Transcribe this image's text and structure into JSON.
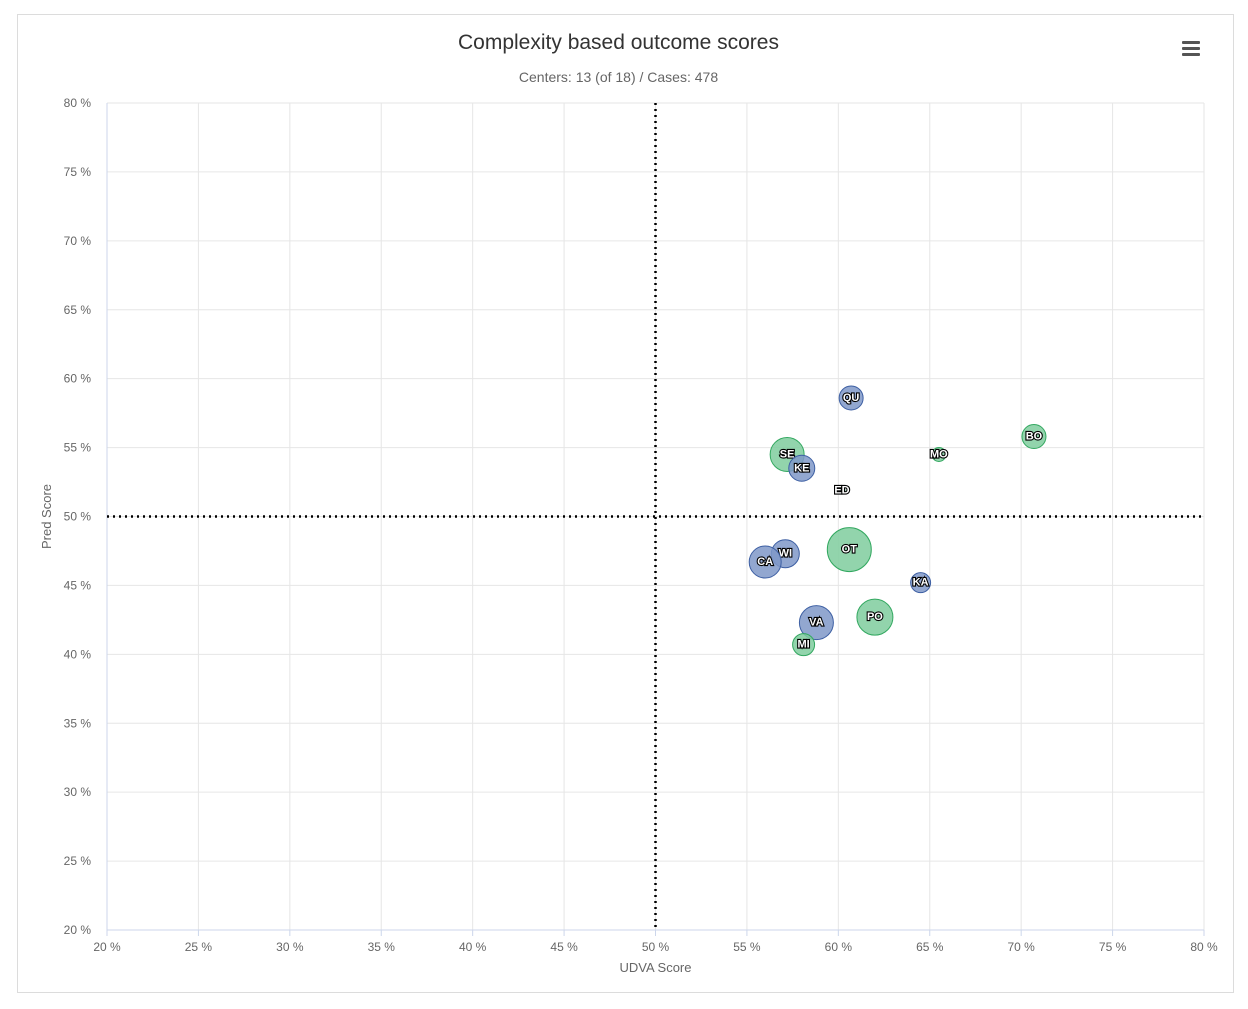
{
  "chart_data": {
    "type": "bubble",
    "title": "Complexity based outcome scores",
    "subtitle": "Centers: 13 (of 18) / Cases: 478",
    "xlabel": "UDVA Score",
    "ylabel": "Pred Score",
    "xlim": [
      20,
      80
    ],
    "ylim": [
      20,
      80
    ],
    "x_ticks": [
      "20 %",
      "25 %",
      "30 %",
      "35 %",
      "40 %",
      "45 %",
      "50 %",
      "55 %",
      "60 %",
      "65 %",
      "70 %",
      "75 %",
      "80 %"
    ],
    "y_ticks": [
      "20 %",
      "25 %",
      "30 %",
      "35 %",
      "40 %",
      "45 %",
      "50 %",
      "55 %",
      "60 %",
      "65 %",
      "70 %",
      "75 %",
      "80 %"
    ],
    "reference_lines": {
      "x": 50,
      "y": 50
    },
    "grid": true,
    "colors": {
      "blue": "#7f98c8",
      "green": "#7fcc9d"
    },
    "points": [
      {
        "label": "QU",
        "x": 60.7,
        "y": 58.6,
        "size": 12,
        "color": "blue"
      },
      {
        "label": "BO",
        "x": 70.7,
        "y": 55.8,
        "size": 12,
        "color": "green"
      },
      {
        "label": "SE",
        "x": 57.2,
        "y": 54.5,
        "size": 17,
        "color": "green"
      },
      {
        "label": "MO",
        "x": 65.5,
        "y": 54.5,
        "size": 7,
        "color": "green"
      },
      {
        "label": "KE",
        "x": 58.0,
        "y": 53.5,
        "size": 13,
        "color": "blue"
      },
      {
        "label": "ED",
        "x": 60.2,
        "y": 51.9,
        "size": 3,
        "color": "green"
      },
      {
        "label": "OT",
        "x": 60.6,
        "y": 47.6,
        "size": 22,
        "color": "green"
      },
      {
        "label": "WI",
        "x": 57.1,
        "y": 47.3,
        "size": 14,
        "color": "blue"
      },
      {
        "label": "CA",
        "x": 56.0,
        "y": 46.7,
        "size": 16,
        "color": "blue"
      },
      {
        "label": "KA",
        "x": 64.5,
        "y": 45.2,
        "size": 10,
        "color": "blue"
      },
      {
        "label": "PO",
        "x": 62.0,
        "y": 42.7,
        "size": 18,
        "color": "green"
      },
      {
        "label": "VA",
        "x": 58.8,
        "y": 42.3,
        "size": 17,
        "color": "blue"
      },
      {
        "label": "MI",
        "x": 58.1,
        "y": 40.7,
        "size": 11,
        "color": "green"
      }
    ]
  }
}
